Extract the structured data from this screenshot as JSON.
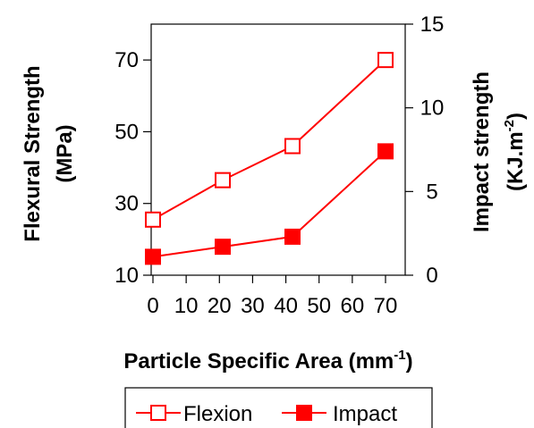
{
  "chart_data": {
    "type": "line",
    "x": [
      0,
      21,
      42,
      70
    ],
    "x_tick_labels": [
      "0",
      "10",
      "20",
      "30",
      "40",
      "50",
      "60",
      "70"
    ],
    "xlabel": {
      "main": "Particle Specific Area (mm",
      "sup": "-1",
      "end": ")"
    },
    "ylabel_left": {
      "line1": "Flexural Strength",
      "line2": "(MPa)"
    },
    "ylabel_right": {
      "line1": "Impact strength",
      "line2_main": "(KJ.m",
      "line2_sup": "-2",
      "line2_end": ")"
    },
    "ylim_left": [
      10,
      80
    ],
    "ylim_right": [
      0,
      15
    ],
    "y_left_ticks": [
      10,
      30,
      50,
      70
    ],
    "y_right_ticks": [
      0,
      5,
      10,
      15
    ],
    "grid": false,
    "legend_position": "bottom",
    "series": [
      {
        "name": "Flexion",
        "axis": "left",
        "marker": "open-square",
        "color": "#ff0000",
        "values": [
          25.5,
          36.5,
          46,
          70
        ]
      },
      {
        "name": "Impact",
        "axis": "right",
        "marker": "filled-square",
        "color": "#ff0000",
        "values": [
          1.1,
          1.7,
          2.3,
          7.4
        ]
      }
    ]
  }
}
